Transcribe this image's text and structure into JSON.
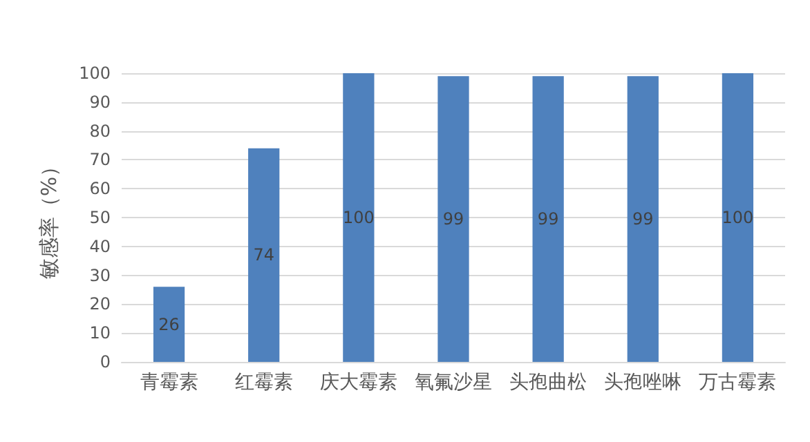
{
  "chart_data": {
    "type": "bar",
    "ylabel": "敏感率（%）",
    "categories": [
      "青霉素",
      "红霉素",
      "庆大霉素",
      "氧氟沙星",
      "头孢曲松",
      "头孢唑啉",
      "万古霉素"
    ],
    "values": [
      26,
      74,
      100,
      99,
      99,
      99,
      100
    ],
    "color": "#4f81bd",
    "ylim": [
      0,
      100
    ],
    "yticks": [
      0,
      10,
      20,
      30,
      40,
      50,
      60,
      70,
      80,
      90,
      100
    ],
    "grid": "y",
    "data_labels": true
  }
}
